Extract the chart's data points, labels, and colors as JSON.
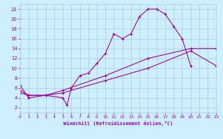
{
  "xlabel": "Windchill (Refroidissement éolien,°C)",
  "background_color": "#cceeff",
  "grid_color": "#aacccc",
  "line_color": "#990099",
  "xlim": [
    0,
    23
  ],
  "ylim": [
    1,
    23
  ],
  "xticks": [
    0,
    1,
    2,
    3,
    4,
    5,
    6,
    7,
    8,
    9,
    10,
    11,
    12,
    13,
    14,
    15,
    16,
    17,
    18,
    19,
    20,
    21,
    22,
    23
  ],
  "yticks": [
    2,
    4,
    6,
    8,
    10,
    12,
    14,
    16,
    18,
    20,
    22
  ],
  "line1_x": [
    0,
    1,
    3,
    5,
    5.5,
    6,
    7,
    8,
    9,
    10,
    11,
    12,
    13,
    14,
    15,
    16,
    17,
    18,
    19,
    20
  ],
  "line1_y": [
    6.5,
    4.0,
    4.5,
    4.0,
    2.5,
    6.0,
    8.5,
    9.0,
    11.0,
    13.0,
    17.0,
    16.0,
    17.0,
    20.5,
    22.0,
    22.0,
    21.0,
    18.5,
    16.0,
    10.5
  ],
  "line2_x": [
    0,
    1,
    3,
    5,
    10,
    15,
    20,
    23
  ],
  "line2_y": [
    5.0,
    4.5,
    4.5,
    5.0,
    7.5,
    10.0,
    13.5,
    10.5
  ],
  "line3_x": [
    0,
    1,
    3,
    5,
    10,
    15,
    20,
    23
  ],
  "line3_y": [
    5.5,
    4.5,
    4.5,
    5.5,
    8.5,
    12.0,
    14.0,
    14.0
  ],
  "marker": "+"
}
